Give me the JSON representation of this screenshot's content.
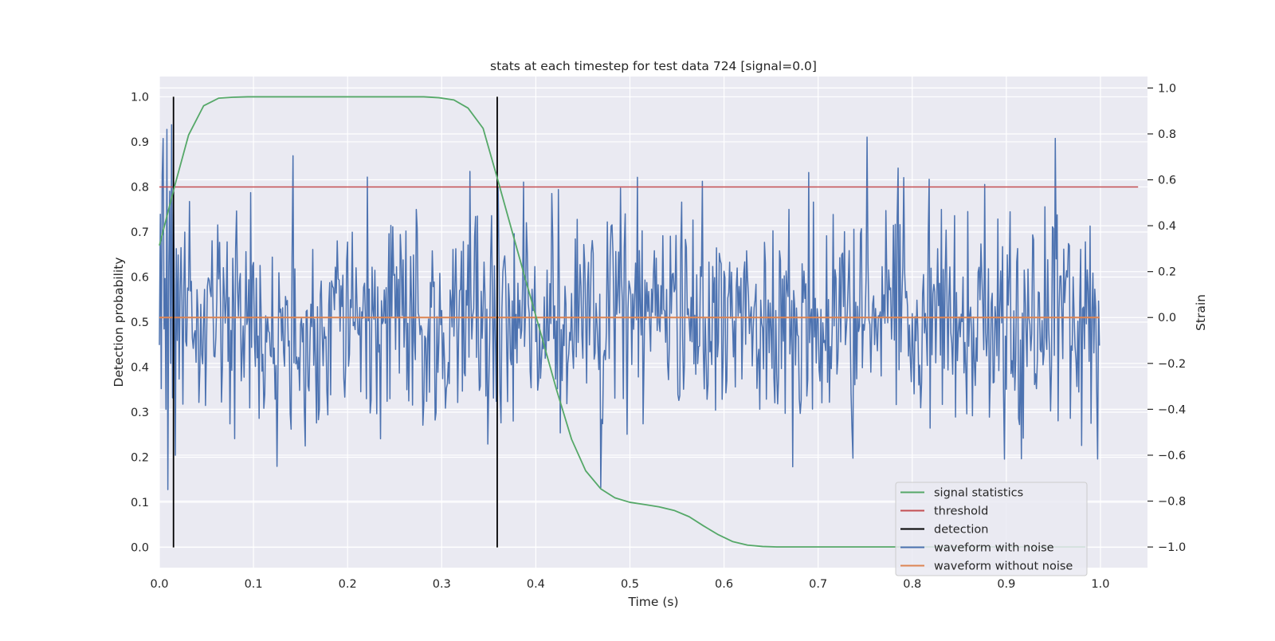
{
  "chart_data": {
    "type": "line",
    "title": "stats at each timestep for test data 724 [signal=0.0]",
    "xlabel": "Time (s)",
    "ylabel_left": "Detection probability",
    "ylabel_right": "Strain",
    "xlim": [
      0.0,
      1.05
    ],
    "ylim_left": [
      -0.045,
      1.045
    ],
    "ylim_right": [
      -1.09,
      1.05
    ],
    "x_ticks": [
      "0.0",
      "0.1",
      "0.2",
      "0.3",
      "0.4",
      "0.5",
      "0.6",
      "0.7",
      "0.8",
      "0.9",
      "1.0"
    ],
    "y_ticks_left": [
      "0.0",
      "0.1",
      "0.2",
      "0.3",
      "0.4",
      "0.5",
      "0.6",
      "0.7",
      "0.8",
      "0.9",
      "1.0"
    ],
    "y_ticks_right": [
      "−1.0",
      "−0.8",
      "−0.6",
      "−0.4",
      "−0.2",
      "0.0",
      "0.2",
      "0.4",
      "0.6",
      "0.8",
      "1.0"
    ],
    "grid": true,
    "legend_position": "bottom-right",
    "threshold": 0.8,
    "detections": [
      0.015,
      0.359
    ],
    "signal_statistics": {
      "name": "signal statistics",
      "color": "#55a868",
      "x": [
        0.0,
        0.016,
        0.031,
        0.047,
        0.063,
        0.078,
        0.094,
        0.11,
        0.125,
        0.141,
        0.156,
        0.172,
        0.188,
        0.203,
        0.219,
        0.234,
        0.25,
        0.266,
        0.281,
        0.297,
        0.313,
        0.328,
        0.344,
        0.359,
        0.375,
        0.391,
        0.406,
        0.422,
        0.438,
        0.453,
        0.469,
        0.484,
        0.5,
        0.516,
        0.531,
        0.547,
        0.563,
        0.578,
        0.594,
        0.609,
        0.625,
        0.641,
        0.656,
        0.7,
        0.8,
        0.9,
        0.984
      ],
      "y": [
        0.67,
        0.8,
        0.915,
        0.98,
        0.997,
        0.999,
        1.0,
        1.0,
        1.0,
        1.0,
        1.0,
        1.0,
        1.0,
        1.0,
        1.0,
        1.0,
        1.0,
        1.0,
        1.0,
        0.998,
        0.993,
        0.975,
        0.93,
        0.82,
        0.7,
        0.58,
        0.47,
        0.35,
        0.24,
        0.17,
        0.13,
        0.11,
        0.1,
        0.095,
        0.09,
        0.082,
        0.068,
        0.048,
        0.028,
        0.013,
        0.005,
        0.002,
        0.001,
        0.001,
        0.001,
        0.001,
        0.001
      ]
    },
    "waveform_with_noise": {
      "name": "waveform with noise",
      "color": "#4c72b0",
      "x_start": 0.0,
      "x_end": 0.999,
      "num_samples": 1000,
      "std": 0.25,
      "seed": 724,
      "y_sample": [
        -0.12,
        0.45,
        -0.31,
        0.62,
        0.78,
        -0.05,
        0.17,
        -0.4,
        0.82,
        -0.75,
        0.22,
        0.55,
        -0.2,
        0.84,
        -0.35,
        0.5,
        0.12,
        -0.6,
        0.3,
        -0.1
      ]
    },
    "waveform_without_noise": {
      "name": "waveform without noise",
      "color": "#dd8452",
      "x": [
        0.0,
        0.999
      ],
      "y": [
        0.0,
        0.0
      ]
    },
    "threshold_series": {
      "name": "threshold",
      "color": "#c44e52",
      "x": [
        0.0,
        1.04
      ],
      "y": [
        0.8,
        0.8
      ]
    },
    "detection_series": {
      "name": "detection",
      "color": "#000000"
    }
  }
}
